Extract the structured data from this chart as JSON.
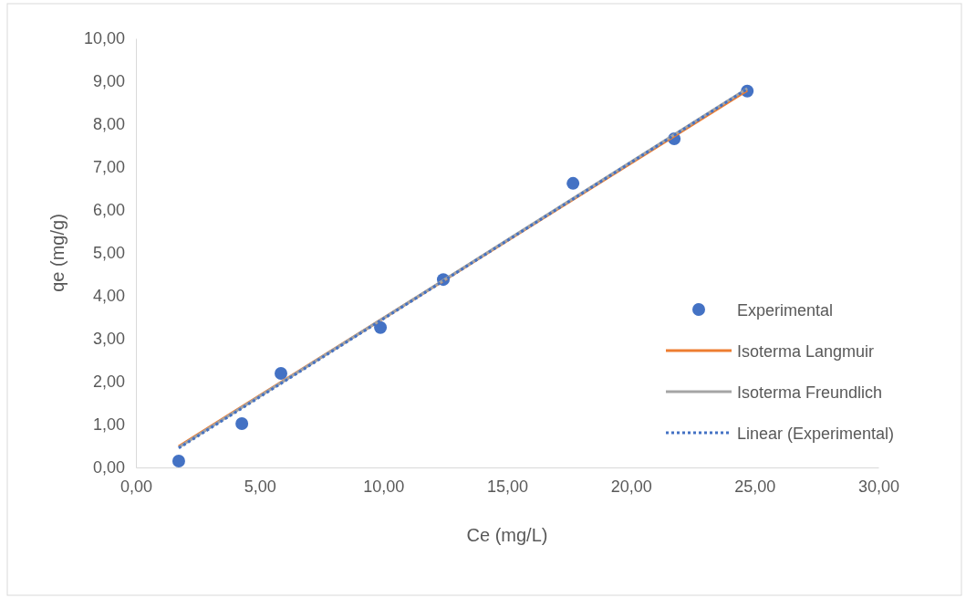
{
  "chart_data": {
    "type": "scatter",
    "xlabel": "Ce (mg/L)",
    "ylabel": "qe (mg/g)",
    "xlim": [
      0,
      30
    ],
    "ylim": [
      0,
      10
    ],
    "xticks": [
      {
        "value": 0,
        "label": "0,00"
      },
      {
        "value": 5,
        "label": "5,00"
      },
      {
        "value": 10,
        "label": "10,00"
      },
      {
        "value": 15,
        "label": "15,00"
      },
      {
        "value": 20,
        "label": "20,00"
      },
      {
        "value": 25,
        "label": "25,00"
      },
      {
        "value": 30,
        "label": "30,00"
      }
    ],
    "yticks": [
      {
        "value": 0,
        "label": "0,00"
      },
      {
        "value": 1,
        "label": "1,00"
      },
      {
        "value": 2,
        "label": "2,00"
      },
      {
        "value": 3,
        "label": "3,00"
      },
      {
        "value": 4,
        "label": "4,00"
      },
      {
        "value": 5,
        "label": "5,00"
      },
      {
        "value": 6,
        "label": "6,00"
      },
      {
        "value": 7,
        "label": "7,00"
      },
      {
        "value": 8,
        "label": "8,00"
      },
      {
        "value": 9,
        "label": "9,00"
      },
      {
        "value": 10,
        "label": "10,00"
      }
    ],
    "grid": false,
    "legend": "right",
    "series": [
      {
        "name": "Experimental",
        "marker": "circle",
        "color": "#4472c4",
        "x": [
          1.73,
          4.28,
          5.86,
          9.88,
          12.42,
          17.66,
          21.75,
          24.7
        ],
        "values": [
          0.15,
          1.02,
          2.19,
          3.26,
          4.38,
          6.62,
          7.66,
          8.77
        ]
      },
      {
        "name": "Isoterma Langmuir",
        "type": "line",
        "line_style": "solid",
        "color": "#ed7d31",
        "x": [
          1.73,
          24.7
        ],
        "values": [
          0.49,
          8.79
        ]
      },
      {
        "name": "Isoterma Freundlich",
        "type": "line",
        "line_style": "solid",
        "color": "#a5a5a5",
        "x": [
          1.73,
          24.7
        ],
        "values": [
          0.47,
          8.83
        ]
      },
      {
        "name": "Linear (Experimental)",
        "type": "line",
        "line_style": "dotted",
        "color": "#4472c4",
        "x": [
          1.73,
          24.7
        ],
        "values": [
          0.45,
          8.82
        ]
      }
    ]
  }
}
